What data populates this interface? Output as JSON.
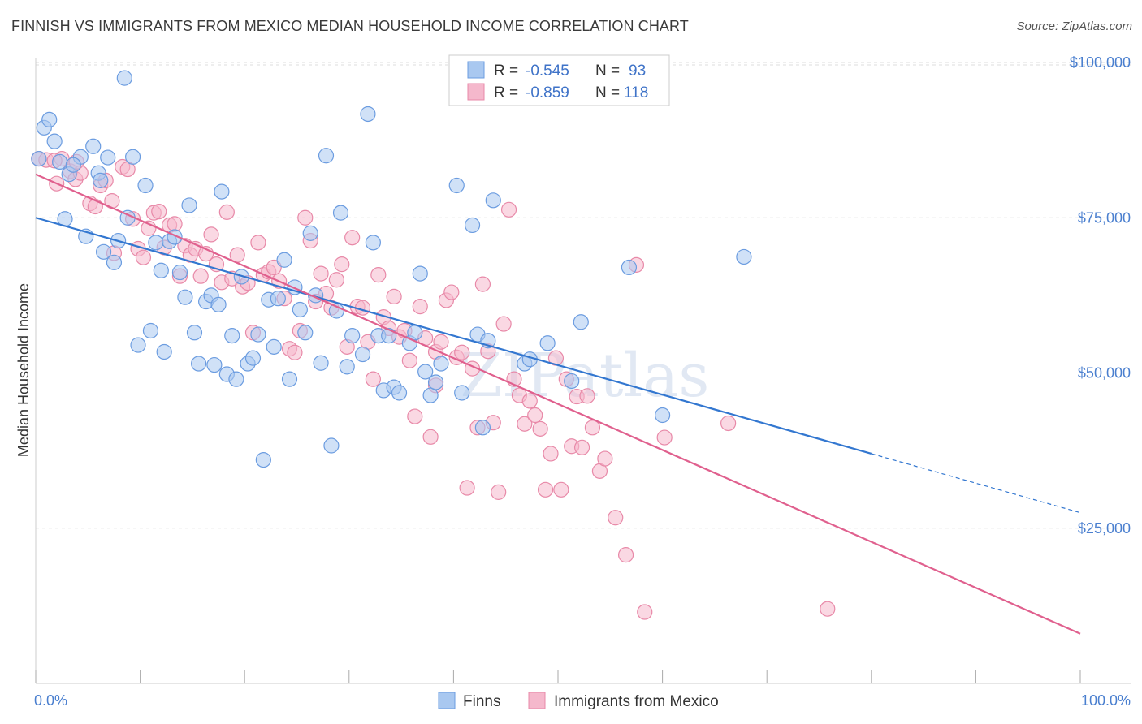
{
  "title": "FINNISH VS IMMIGRANTS FROM MEXICO MEDIAN HOUSEHOLD INCOME CORRELATION CHART",
  "source": "Source: ZipAtlas.com",
  "watermark": "ZIPatlas",
  "colors": {
    "finns_fill": "#a9c8f0",
    "finns_stroke": "#6b9ce0",
    "finns_line": "#3377d0",
    "mexico_fill": "#f5b8cc",
    "mexico_stroke": "#e889a8",
    "mexico_line": "#e0608e",
    "axis_text": "#4a7fcf",
    "grid": "#dddddd"
  },
  "legend": {
    "rows": [
      {
        "r_label": "R =",
        "r_value": "-0.545",
        "n_label": "N =",
        "n_value": "93"
      },
      {
        "r_label": "R =",
        "r_value": "-0.859",
        "n_label": "N =",
        "n_value": "118"
      }
    ]
  },
  "bottom_legend": [
    "Finns",
    "Immigrants from Mexico"
  ],
  "chart_data": {
    "type": "scatter",
    "xlabel": "",
    "ylabel": "Median Household Income",
    "xlim": [
      0,
      100
    ],
    "ylim": [
      0,
      105000
    ],
    "x_tick_labels": [
      "0.0%",
      "100.0%"
    ],
    "y_ticks": [
      {
        "value": 25000,
        "label": "$25,000"
      },
      {
        "value": 50000,
        "label": "$50,000"
      },
      {
        "value": 75000,
        "label": "$75,000"
      },
      {
        "value": 100000,
        "label": "$100,000"
      }
    ],
    "grid": true,
    "legend_position": "top-center",
    "series": [
      {
        "name": "Finns",
        "trend": {
          "x0": 0,
          "y0": 75000,
          "x1": 80,
          "y1": 37000,
          "dashed_to_x": 100,
          "dashed_to_y": 27500
        },
        "points": [
          [
            0.3,
            84500
          ],
          [
            0.8,
            89500
          ],
          [
            1.3,
            90800
          ],
          [
            1.8,
            87300
          ],
          [
            2.3,
            84000
          ],
          [
            2.8,
            74800
          ],
          [
            3.2,
            82000
          ],
          [
            4.3,
            84800
          ],
          [
            4.8,
            72000
          ],
          [
            5.5,
            86500
          ],
          [
            6.0,
            82200
          ],
          [
            6.2,
            81000
          ],
          [
            6.5,
            69500
          ],
          [
            6.9,
            84700
          ],
          [
            7.5,
            67800
          ],
          [
            7.9,
            71300
          ],
          [
            8.5,
            97500
          ],
          [
            8.8,
            75000
          ],
          [
            9.3,
            84800
          ],
          [
            9.8,
            54500
          ],
          [
            10.5,
            80200
          ],
          [
            11.0,
            56800
          ],
          [
            11.5,
            71000
          ],
          [
            12.0,
            66500
          ],
          [
            12.3,
            53400
          ],
          [
            12.8,
            71200
          ],
          [
            13.3,
            71900
          ],
          [
            13.8,
            66200
          ],
          [
            14.3,
            62200
          ],
          [
            14.7,
            77000
          ],
          [
            15.2,
            56500
          ],
          [
            15.6,
            51500
          ],
          [
            16.3,
            61500
          ],
          [
            16.8,
            62500
          ],
          [
            17.1,
            51300
          ],
          [
            17.5,
            61000
          ],
          [
            17.8,
            79200
          ],
          [
            18.3,
            49800
          ],
          [
            18.8,
            56000
          ],
          [
            19.2,
            49000
          ],
          [
            19.7,
            65500
          ],
          [
            20.3,
            51500
          ],
          [
            20.8,
            52400
          ],
          [
            21.3,
            56200
          ],
          [
            21.8,
            36000
          ],
          [
            22.3,
            61800
          ],
          [
            22.8,
            54200
          ],
          [
            23.2,
            62000
          ],
          [
            23.8,
            68200
          ],
          [
            24.3,
            49000
          ],
          [
            24.8,
            63800
          ],
          [
            25.3,
            60200
          ],
          [
            25.8,
            56500
          ],
          [
            26.3,
            72500
          ],
          [
            26.8,
            62500
          ],
          [
            27.3,
            51600
          ],
          [
            27.8,
            85000
          ],
          [
            28.3,
            38300
          ],
          [
            28.8,
            60000
          ],
          [
            29.2,
            75800
          ],
          [
            29.8,
            51000
          ],
          [
            30.3,
            56000
          ],
          [
            31.3,
            53000
          ],
          [
            31.8,
            91700
          ],
          [
            32.3,
            71000
          ],
          [
            32.8,
            56000
          ],
          [
            33.3,
            47200
          ],
          [
            33.8,
            56000
          ],
          [
            34.3,
            47700
          ],
          [
            34.8,
            46800
          ],
          [
            35.8,
            54800
          ],
          [
            36.3,
            56500
          ],
          [
            36.8,
            66000
          ],
          [
            37.3,
            50200
          ],
          [
            37.8,
            46400
          ],
          [
            38.3,
            48500
          ],
          [
            38.8,
            51500
          ],
          [
            40.3,
            80200
          ],
          [
            40.8,
            46800
          ],
          [
            41.8,
            73800
          ],
          [
            42.3,
            56200
          ],
          [
            42.8,
            41200
          ],
          [
            43.3,
            55200
          ],
          [
            43.8,
            77800
          ],
          [
            46.8,
            51500
          ],
          [
            47.3,
            52200
          ],
          [
            49.0,
            54800
          ],
          [
            51.3,
            48700
          ],
          [
            52.2,
            58200
          ],
          [
            56.8,
            67000
          ],
          [
            60.0,
            43200
          ],
          [
            67.8,
            68700
          ],
          [
            3.6,
            83500
          ]
        ]
      },
      {
        "name": "Immigrants from Mexico",
        "trend": {
          "x0": 0,
          "y0": 82000,
          "x1": 100,
          "y1": 8000
        },
        "points": [
          [
            0.3,
            84500
          ],
          [
            1.0,
            84300
          ],
          [
            2.0,
            80500
          ],
          [
            2.5,
            84500
          ],
          [
            3.3,
            82500
          ],
          [
            3.8,
            81200
          ],
          [
            4.3,
            82200
          ],
          [
            5.2,
            77300
          ],
          [
            5.7,
            76800
          ],
          [
            6.2,
            80200
          ],
          [
            6.7,
            81000
          ],
          [
            7.3,
            77700
          ],
          [
            7.5,
            69300
          ],
          [
            8.3,
            83200
          ],
          [
            8.8,
            82800
          ],
          [
            9.3,
            74800
          ],
          [
            9.8,
            70000
          ],
          [
            10.3,
            68600
          ],
          [
            10.8,
            73300
          ],
          [
            11.3,
            75800
          ],
          [
            11.8,
            76000
          ],
          [
            12.3,
            70200
          ],
          [
            12.8,
            73800
          ],
          [
            13.3,
            74000
          ],
          [
            13.8,
            65600
          ],
          [
            14.3,
            70500
          ],
          [
            14.8,
            69000
          ],
          [
            15.3,
            70000
          ],
          [
            15.8,
            65600
          ],
          [
            16.3,
            69200
          ],
          [
            16.8,
            72300
          ],
          [
            17.3,
            67500
          ],
          [
            17.8,
            64600
          ],
          [
            18.3,
            75900
          ],
          [
            18.8,
            65200
          ],
          [
            19.3,
            69000
          ],
          [
            19.8,
            63900
          ],
          [
            20.3,
            64500
          ],
          [
            20.8,
            56500
          ],
          [
            21.3,
            71000
          ],
          [
            21.8,
            65800
          ],
          [
            22.3,
            66300
          ],
          [
            22.8,
            67000
          ],
          [
            23.3,
            64800
          ],
          [
            23.8,
            62000
          ],
          [
            24.3,
            53900
          ],
          [
            24.8,
            53300
          ],
          [
            25.3,
            56800
          ],
          [
            25.8,
            75000
          ],
          [
            26.3,
            71300
          ],
          [
            26.8,
            61500
          ],
          [
            27.3,
            66000
          ],
          [
            27.8,
            62800
          ],
          [
            28.3,
            60500
          ],
          [
            28.8,
            65000
          ],
          [
            29.3,
            67500
          ],
          [
            29.8,
            54200
          ],
          [
            30.3,
            71800
          ],
          [
            30.8,
            60700
          ],
          [
            31.3,
            60500
          ],
          [
            31.8,
            55000
          ],
          [
            32.3,
            49000
          ],
          [
            32.8,
            65800
          ],
          [
            33.3,
            59000
          ],
          [
            33.8,
            57200
          ],
          [
            34.3,
            62300
          ],
          [
            34.8,
            55800
          ],
          [
            35.3,
            56800
          ],
          [
            35.8,
            52000
          ],
          [
            36.3,
            43000
          ],
          [
            36.8,
            60700
          ],
          [
            37.3,
            55600
          ],
          [
            37.8,
            39700
          ],
          [
            38.3,
            53400
          ],
          [
            38.8,
            55000
          ],
          [
            39.3,
            61700
          ],
          [
            39.8,
            63000
          ],
          [
            40.3,
            52500
          ],
          [
            40.8,
            53300
          ],
          [
            41.3,
            31500
          ],
          [
            41.8,
            50700
          ],
          [
            42.3,
            41200
          ],
          [
            42.8,
            64300
          ],
          [
            43.3,
            53500
          ],
          [
            43.8,
            42000
          ],
          [
            44.3,
            30800
          ],
          [
            44.8,
            57900
          ],
          [
            45.3,
            76300
          ],
          [
            45.8,
            49000
          ],
          [
            46.3,
            46400
          ],
          [
            46.8,
            41800
          ],
          [
            47.3,
            45500
          ],
          [
            47.8,
            43200
          ],
          [
            48.3,
            41000
          ],
          [
            48.8,
            31200
          ],
          [
            49.3,
            37000
          ],
          [
            49.8,
            52400
          ],
          [
            50.3,
            31200
          ],
          [
            50.8,
            49000
          ],
          [
            51.3,
            38200
          ],
          [
            51.8,
            46200
          ],
          [
            52.3,
            38000
          ],
          [
            52.8,
            46300
          ],
          [
            53.3,
            41200
          ],
          [
            54.0,
            34200
          ],
          [
            54.5,
            36200
          ],
          [
            55.5,
            26700
          ],
          [
            56.5,
            20700
          ],
          [
            57.5,
            67400
          ],
          [
            58.3,
            11500
          ],
          [
            60.2,
            39600
          ],
          [
            66.3,
            41900
          ],
          [
            75.8,
            12000
          ],
          [
            1.8,
            84200
          ],
          [
            3.9,
            84000
          ],
          [
            38.3,
            48000
          ]
        ]
      }
    ]
  }
}
